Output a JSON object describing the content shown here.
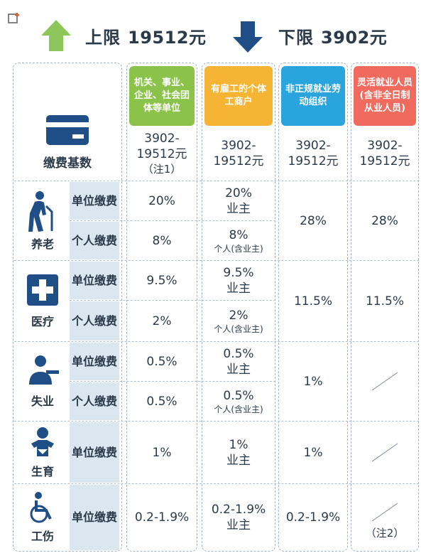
{
  "top": {
    "upper_label": "上限",
    "upper_value": "19512元",
    "lower_label": "下限",
    "lower_value": "3902元",
    "colors": {
      "up_arrow": "#8dc65a",
      "down_arrow": "#1f4f86"
    }
  },
  "columns": [
    {
      "label": "机关、事业、企业、社会团体等单位",
      "color": "#8bc34a"
    },
    {
      "label": "有雇工的个体工商户",
      "color": "#f5b433"
    },
    {
      "label": "非正规就业劳动组织",
      "color": "#29a4dd"
    },
    {
      "label": "灵活就业人员(含非全日制从业人员)",
      "color": "#f16a5e"
    }
  ],
  "base_row": {
    "label": "缴费基数",
    "icon": "card-icon",
    "values": [
      {
        "line1": "3902-",
        "line2": "19512元",
        "line3": "（注1）"
      },
      {
        "line1": "3902-",
        "line2": "19512元"
      },
      {
        "line1": "3902-",
        "line2": "19512元"
      },
      {
        "line1": "3902-",
        "line2": "19512元"
      }
    ]
  },
  "categories": [
    {
      "name": "养老",
      "icon": "elderly-icon"
    },
    {
      "name": "医疗",
      "icon": "medical-cross-icon"
    },
    {
      "name": "失业",
      "icon": "unemployed-icon"
    },
    {
      "name": "生育",
      "icon": "baby-icon"
    },
    {
      "name": "工伤",
      "icon": "wheelchair-icon"
    }
  ],
  "sub_labels": {
    "unit": "单位缴费",
    "personal": "个人缴费"
  },
  "rows": {
    "pension_unit": {
      "c1": "20%",
      "c2": "20%",
      "c2_sub": "业主"
    },
    "pension_personal": {
      "c1": "8%",
      "c2": "8%",
      "c2_sub": "个人(含业主)"
    },
    "pension_merged": {
      "c3": "28%",
      "c4": "28%"
    },
    "medical_unit": {
      "c1": "9.5%",
      "c2": "9.5%",
      "c2_sub": "业主"
    },
    "medical_personal": {
      "c1": "2%",
      "c2": "2%",
      "c2_sub": "个人(含业主)"
    },
    "medical_merged": {
      "c3": "11.5%",
      "c4": "11.5%"
    },
    "unemp_unit": {
      "c1": "0.5%",
      "c2": "0.5%",
      "c2_sub": "业主"
    },
    "unemp_personal": {
      "c1": "0.5%",
      "c2": "0.5%",
      "c2_sub": "个人(含业主)"
    },
    "unemp_merged": {
      "c3": "1%"
    },
    "maternity_unit": {
      "c1": "1%",
      "c2": "1%",
      "c2_sub": "业主",
      "c3": "1%"
    },
    "injury_unit": {
      "c1": "0.2-1.9%",
      "c2": "0.2-1.9%",
      "c2_sub": "业主",
      "c3": "0.2-1.9%",
      "c4_note": "（注2）"
    }
  }
}
